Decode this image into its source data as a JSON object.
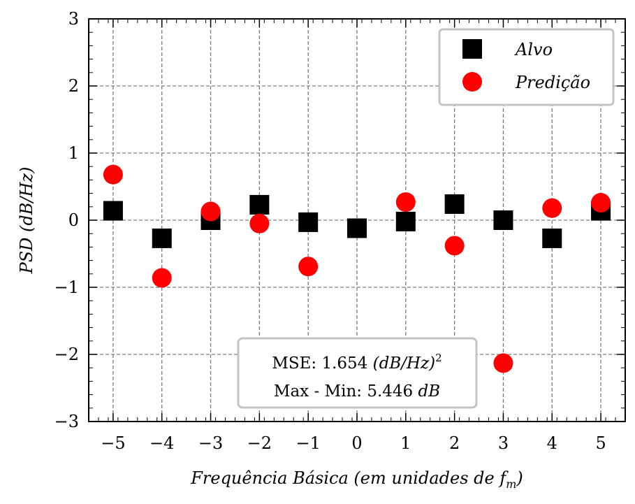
{
  "chart_data": {
    "type": "scatter",
    "xlabel": "Frequência Básica (em unidades de f_m)",
    "ylabel": "PSD (dB/Hz)",
    "xlim": [
      -5.5,
      5.5
    ],
    "ylim": [
      -3,
      3
    ],
    "grid": true,
    "x_ticks": [
      -5,
      -4,
      -3,
      -2,
      -1,
      0,
      1,
      2,
      3,
      4,
      5
    ],
    "y_ticks": [
      -3,
      -2,
      -1,
      0,
      1,
      2,
      3
    ],
    "x_tick_labels": [
      "−5",
      "−4",
      "−3",
      "−2",
      "−1",
      "0",
      "1",
      "2",
      "3",
      "4",
      "5"
    ],
    "y_tick_labels": [
      "−3",
      "−2",
      "−1",
      "0",
      "1",
      "2",
      "3"
    ],
    "legend_position": "top-right",
    "series": [
      {
        "name": "Alvo",
        "marker": "square",
        "color": "#000000",
        "x": [
          -5,
          -4,
          -3,
          -2,
          -1,
          0,
          1,
          2,
          3,
          4,
          5
        ],
        "y": [
          0.14,
          -0.27,
          0.0,
          0.23,
          -0.03,
          -0.12,
          -0.02,
          0.24,
          0.0,
          -0.27,
          0.14
        ]
      },
      {
        "name": "Predição",
        "marker": "circle",
        "color": "#ff0000",
        "x": [
          -5,
          -4,
          -3,
          -2,
          -1,
          0,
          1,
          2,
          3,
          4,
          5
        ],
        "y": [
          0.68,
          -0.86,
          0.13,
          -0.05,
          -0.69,
          null,
          0.27,
          -0.38,
          -2.13,
          0.18,
          0.26
        ]
      }
    ],
    "annotation": {
      "line1_prefix": "MSE: 1.654 ",
      "line1_unit": "(dB/Hz)",
      "line1_sup": "2",
      "line2_prefix": "Max - Min: 5.446 ",
      "line2_unit": "dB"
    }
  }
}
